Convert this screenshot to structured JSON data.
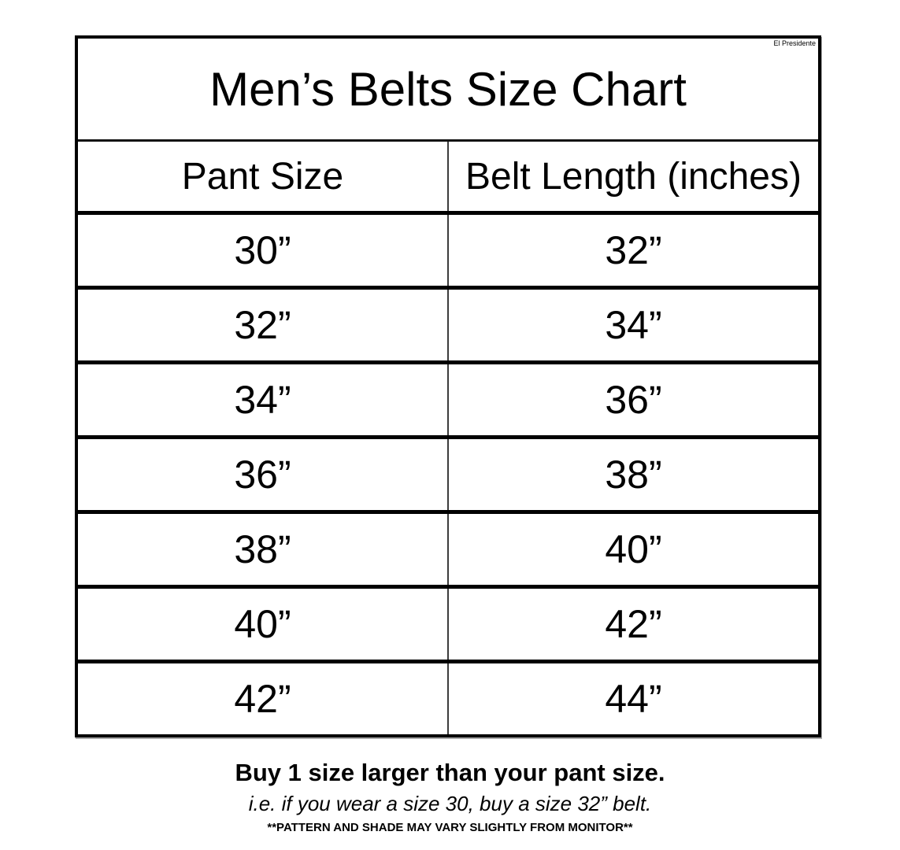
{
  "watermark": "El Presidente",
  "chart_data": {
    "type": "table",
    "title": "Men’s Belts Size Chart",
    "columns": [
      "Pant Size",
      "Belt Length (inches)"
    ],
    "rows": [
      [
        "30”",
        "32”"
      ],
      [
        "32”",
        "34”"
      ],
      [
        "34”",
        "36”"
      ],
      [
        "36”",
        "38”"
      ],
      [
        "38”",
        "40”"
      ],
      [
        "40”",
        "42”"
      ],
      [
        "42”",
        "44”"
      ]
    ],
    "layout": {
      "grid": "heavy horizontal rules, thin center column rule, heavy outer border",
      "text_color": "#000000",
      "background": "#ffffff"
    }
  },
  "footer": {
    "line1": "Buy 1 size larger than your pant size.",
    "line2": "i.e. if you wear a size 30, buy a size 32” belt.",
    "line3": "**PATTERN AND SHADE MAY VARY SLIGHTLY FROM MONITOR**"
  }
}
